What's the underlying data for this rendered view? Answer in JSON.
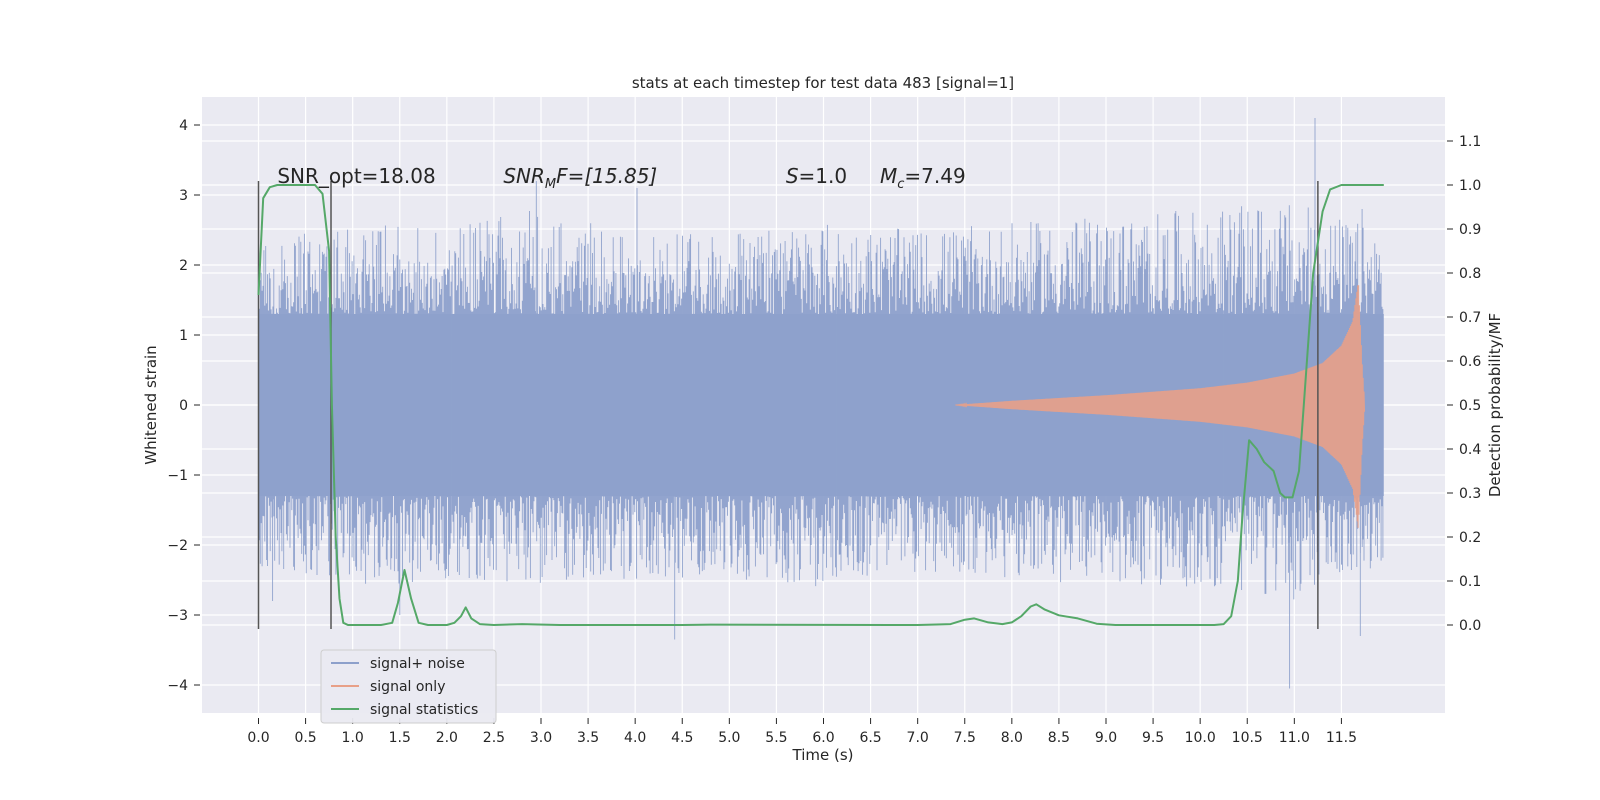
{
  "chart_data": {
    "type": "line",
    "title": "stats at each timestep for test data 483 [signal=1]",
    "xlabel": "Time (s)",
    "ylabel": "Whitened strain",
    "ylabel_right": "Detection probability/MF",
    "xlim": [
      -0.6,
      12.6
    ],
    "ylim": [
      -4.4,
      4.4
    ],
    "ylim_right": [
      -0.2,
      1.2
    ],
    "x_ticks": [
      0.0,
      0.5,
      1.0,
      1.5,
      2.0,
      2.5,
      3.0,
      3.5,
      4.0,
      4.5,
      5.0,
      5.5,
      6.0,
      6.5,
      7.0,
      7.5,
      8.0,
      8.5,
      9.0,
      9.5,
      10.0,
      10.5,
      11.0,
      11.5
    ],
    "x_tick_labels": [
      "0.0",
      "0.5",
      "1.0",
      "1.5",
      "2.0",
      "2.5",
      "3.0",
      "3.5",
      "4.0",
      "4.5",
      "5.0",
      "5.5",
      "6.0",
      "6.5",
      "7.0",
      "7.5",
      "8.0",
      "8.5",
      "9.0",
      "9.5",
      "10.0",
      "10.5",
      "11.0",
      "11.5"
    ],
    "y_ticks": [
      -4,
      -3,
      -2,
      -1,
      0,
      1,
      2,
      3,
      4
    ],
    "y_tick_labels": [
      "−4",
      "−3",
      "−2",
      "−1",
      "0",
      "1",
      "2",
      "3",
      "4"
    ],
    "y_right_ticks": [
      0.0,
      0.1,
      0.2,
      0.3,
      0.4,
      0.5,
      0.6,
      0.7,
      0.8,
      0.9,
      1.0,
      1.1
    ],
    "y_right_tick_labels": [
      "0.0",
      "0.1",
      "0.2",
      "0.3",
      "0.4",
      "0.5",
      "0.6",
      "0.7",
      "0.8",
      "0.9",
      "1.0",
      "1.1"
    ],
    "grid": true,
    "legend_position": "lower-left",
    "series": [
      {
        "name": "signal+ noise",
        "color": "#8da0cb",
        "kind": "noise-band",
        "x_range": [
          0.0,
          11.95
        ],
        "band_core": 1.3,
        "envelope_upper": [
          [
            0.0,
            2.3
          ],
          [
            1.0,
            2.6
          ],
          [
            2.0,
            2.5
          ],
          [
            3.0,
            2.9
          ],
          [
            4.0,
            2.4
          ],
          [
            5.0,
            2.5
          ],
          [
            6.0,
            2.6
          ],
          [
            7.0,
            2.5
          ],
          [
            8.0,
            2.6
          ],
          [
            9.0,
            2.7
          ],
          [
            10.0,
            2.8
          ],
          [
            11.0,
            2.9
          ],
          [
            11.95,
            2.5
          ]
        ],
        "envelope_lower": [
          [
            0.0,
            -2.3
          ],
          [
            1.0,
            -2.6
          ],
          [
            2.0,
            -2.5
          ],
          [
            3.0,
            -2.6
          ],
          [
            4.0,
            -2.5
          ],
          [
            5.0,
            -2.5
          ],
          [
            6.0,
            -2.6
          ],
          [
            7.0,
            -2.4
          ],
          [
            8.0,
            -2.5
          ],
          [
            9.0,
            -2.6
          ],
          [
            10.0,
            -2.6
          ],
          [
            11.0,
            -2.8
          ],
          [
            11.95,
            -2.3
          ]
        ],
        "spikes": [
          [
            11.22,
            4.1
          ],
          [
            11.72,
            2.8
          ],
          [
            2.95,
            3.2
          ],
          [
            4.02,
            3.1
          ],
          [
            10.95,
            -4.05
          ],
          [
            4.42,
            -3.35
          ],
          [
            11.7,
            -3.3
          ],
          [
            1.5,
            -3.0
          ],
          [
            0.15,
            -2.8
          ]
        ]
      },
      {
        "name": "signal only",
        "color": "#e8a088",
        "kind": "chirp",
        "x_start": 7.4,
        "x_end": 11.75,
        "amplitude": [
          [
            7.4,
            0.0
          ],
          [
            8.0,
            0.06
          ],
          [
            9.0,
            0.14
          ],
          [
            10.0,
            0.24
          ],
          [
            10.5,
            0.32
          ],
          [
            11.0,
            0.45
          ],
          [
            11.3,
            0.6
          ],
          [
            11.5,
            0.85
          ],
          [
            11.62,
            1.2
          ],
          [
            11.68,
            1.78
          ],
          [
            11.72,
            0.6
          ],
          [
            11.75,
            0.0
          ]
        ]
      },
      {
        "name": "signal statistics",
        "color": "#55a868",
        "kind": "line",
        "axis": "right",
        "points": [
          [
            0.0,
            0.75
          ],
          [
            0.05,
            0.97
          ],
          [
            0.12,
            0.995
          ],
          [
            0.2,
            1.0
          ],
          [
            0.6,
            1.0
          ],
          [
            0.68,
            0.98
          ],
          [
            0.75,
            0.85
          ],
          [
            0.78,
            0.5
          ],
          [
            0.82,
            0.2
          ],
          [
            0.86,
            0.06
          ],
          [
            0.9,
            0.005
          ],
          [
            0.95,
            0.0
          ],
          [
            1.3,
            0.0
          ],
          [
            1.42,
            0.005
          ],
          [
            1.48,
            0.05
          ],
          [
            1.55,
            0.125
          ],
          [
            1.62,
            0.06
          ],
          [
            1.7,
            0.005
          ],
          [
            1.8,
            0.0
          ],
          [
            2.0,
            0.0
          ],
          [
            2.08,
            0.005
          ],
          [
            2.15,
            0.02
          ],
          [
            2.2,
            0.04
          ],
          [
            2.26,
            0.015
          ],
          [
            2.35,
            0.002
          ],
          [
            2.5,
            0.0
          ],
          [
            2.8,
            0.002
          ],
          [
            3.2,
            0.0
          ],
          [
            4.5,
            0.0
          ],
          [
            4.8,
            0.001
          ],
          [
            7.0,
            0.0
          ],
          [
            7.35,
            0.002
          ],
          [
            7.5,
            0.012
          ],
          [
            7.6,
            0.015
          ],
          [
            7.75,
            0.006
          ],
          [
            7.9,
            0.002
          ],
          [
            8.0,
            0.006
          ],
          [
            8.1,
            0.02
          ],
          [
            8.2,
            0.042
          ],
          [
            8.26,
            0.047
          ],
          [
            8.35,
            0.035
          ],
          [
            8.5,
            0.022
          ],
          [
            8.7,
            0.015
          ],
          [
            8.9,
            0.003
          ],
          [
            9.1,
            0.0
          ],
          [
            10.15,
            0.0
          ],
          [
            10.25,
            0.002
          ],
          [
            10.33,
            0.02
          ],
          [
            10.4,
            0.1
          ],
          [
            10.45,
            0.25
          ],
          [
            10.52,
            0.42
          ],
          [
            10.6,
            0.4
          ],
          [
            10.68,
            0.37
          ],
          [
            10.78,
            0.35
          ],
          [
            10.85,
            0.3
          ],
          [
            10.9,
            0.29
          ],
          [
            10.98,
            0.29
          ],
          [
            11.05,
            0.35
          ],
          [
            11.1,
            0.5
          ],
          [
            11.15,
            0.65
          ],
          [
            11.2,
            0.8
          ],
          [
            11.3,
            0.94
          ],
          [
            11.38,
            0.99
          ],
          [
            11.5,
            1.0
          ],
          [
            11.95,
            1.0
          ]
        ]
      }
    ],
    "marker_lines": [
      0.0,
      0.77,
      11.25
    ],
    "annotations": [
      {
        "text": "SNR_opt=18.08",
        "x": 0.2,
        "y_right": 1.0
      },
      {
        "text_base": "SNR",
        "text_sub": "M",
        "text_tail": "F=[15.85]",
        "x": 2.6,
        "y_right": 1.0
      },
      {
        "text_base": "S",
        "text_tail": "=1.0",
        "x": 5.6,
        "y_right": 1.0
      },
      {
        "text_base": "M",
        "text_sub": "c",
        "text_tail": "=7.49",
        "x": 6.6,
        "y_right": 1.0
      }
    ]
  }
}
